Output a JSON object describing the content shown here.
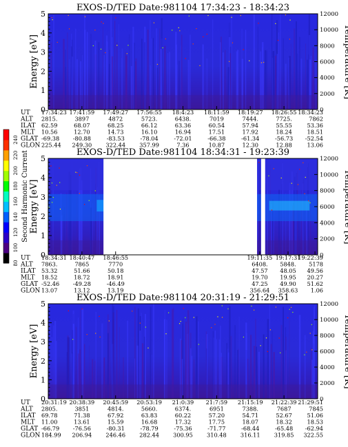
{
  "colorbar": {
    "label": "Second Harmonic Current",
    "ticks": [
      "240",
      "220",
      "200",
      "180",
      "160",
      "140",
      "120",
      "100",
      "80"
    ],
    "colors": [
      "#000000",
      "#4b0082",
      "#2a00c8",
      "#0000ff",
      "#0060ff",
      "#00c0ff",
      "#00ffc0",
      "#00ff00",
      "#a0ff00",
      "#ffff00",
      "#ffa000",
      "#ff3000",
      "#ff0000"
    ]
  },
  "chart_data": [
    {
      "type": "heatmap",
      "title": "EXOS-D/TED   Date:981104   17:34:23 - 18:34:23",
      "ylabel": "Energy [eV]",
      "y2label": "Temperature [K]",
      "ylim": [
        0,
        5
      ],
      "y2lim": [
        0,
        12000
      ],
      "yticks": [
        "0",
        "1",
        "2",
        "3",
        "4",
        "5"
      ],
      "y2ticks": [
        "0",
        "2000",
        "4000",
        "6000",
        "8000",
        "10000",
        "12000"
      ],
      "gaps": [],
      "table": {
        "UT": [
          "17:34:23",
          "17:41:59",
          "17:49:27",
          "17:56:55",
          "18:4:23",
          "18:11:59",
          "18:19:27",
          "18:26:55",
          "18:34:23"
        ],
        "ALT": [
          "2815.",
          "3897",
          "4872",
          "5723.",
          "6438.",
          "7019",
          "7444.",
          "7725.",
          "7862"
        ],
        "ILAT": [
          "62.59",
          "68.07",
          "68.25",
          "66.12",
          "63.36",
          "60.54",
          "57.94",
          "55.55",
          "53.36"
        ],
        "MLT": [
          "10.56",
          "12.70",
          "14.73",
          "16.10",
          "16.94",
          "17.51",
          "17.92",
          "18.24",
          "18.51"
        ],
        "GLAT": [
          "-69.38",
          "-80.88",
          "-83.53",
          "-78.04",
          "-72.01",
          "-66.38",
          "-61.34",
          "-56.73",
          "-52.54"
        ],
        "GLON": [
          "225.44",
          "249.30",
          "322.44",
          "357.99",
          "7.36",
          "10.87",
          "12.30",
          "12.88",
          "13.06"
        ]
      }
    },
    {
      "type": "heatmap",
      "title": "EXOS-D/TED   Date:981104   18:34:31 - 19:23:39",
      "ylabel": "Energy [eV]",
      "y2label": "Temperature [K]",
      "ylim": [
        0,
        5
      ],
      "y2lim": [
        0,
        12000
      ],
      "yticks": [
        "0",
        "1",
        "2",
        "3",
        "4",
        "5"
      ],
      "y2ticks": [
        "0",
        "2000",
        "4000",
        "6000",
        "8000",
        "10000",
        "12000"
      ],
      "gaps": [
        [
          0.205,
          0.775
        ],
        [
          0.79,
          0.805
        ]
      ],
      "table": {
        "UT": [
          "18:34:31",
          "18:40:47",
          "18:46:55",
          "",
          "",
          "19:11:35",
          "19:17:31",
          "19:22:39"
        ],
        "ALT": [
          "7863.",
          "7865",
          "7770",
          "",
          "",
          "6408.",
          "5848.",
          "5178"
        ],
        "ILAT": [
          "53.32",
          "51.66",
          "50.18",
          "",
          "",
          "47.57",
          "48.05",
          "49.56"
        ],
        "MLT": [
          "18.52",
          "18.72",
          "18.91",
          "",
          "",
          "19.70",
          "19.95",
          "20.27"
        ],
        "GLAT": [
          "-52.46",
          "-49.28",
          "-46.49",
          "",
          "",
          "47.25",
          "49.90",
          "51.62"
        ],
        "GLON": [
          "13.07",
          "13.12",
          "13.19",
          "",
          "",
          "356.64",
          "358.63",
          "1.06"
        ]
      }
    },
    {
      "type": "heatmap",
      "title": "EXOS-D/TED   Date:981104   20:31:19 - 21:29:51",
      "ylabel": "Energy [eV]",
      "y2label": "Temperature [K]",
      "ylim": [
        0,
        5
      ],
      "y2lim": [
        0,
        12000
      ],
      "yticks": [
        "0",
        "1",
        "2",
        "3",
        "4",
        "5"
      ],
      "y2ticks": [
        "0",
        "2000",
        "4000",
        "6000",
        "8000",
        "10000",
        "12000"
      ],
      "gaps": [],
      "table": {
        "UT": [
          "20:31:19",
          "20:38:39",
          "20:45:59",
          "20:53:19",
          "21:0:39",
          "21:7:59",
          "21:15:19",
          "21:22:39",
          "21:29:51"
        ],
        "ALT": [
          "2805.",
          "3851",
          "4814.",
          "5660.",
          "6374.",
          "6951",
          "7388.",
          "7687",
          "7845"
        ],
        "ILAT": [
          "69.78",
          "71.38",
          "67.92",
          "63.83",
          "60.22",
          "57.20",
          "54.71",
          "52.67",
          "51.06"
        ],
        "MLT": [
          "11.00",
          "13.61",
          "15.59",
          "16.68",
          "17.32",
          "17.75",
          "18.07",
          "18.32",
          "18.53"
        ],
        "GLAT": [
          "-66.79",
          "-76.56",
          "-80.31",
          "-78.79",
          "-75.36",
          "-71.77",
          "-68.44",
          "-65.48",
          "-62.94"
        ],
        "GLON": [
          "184.99",
          "206.94",
          "246.46",
          "282.44",
          "300.95",
          "310.48",
          "316.11",
          "319.85",
          "322.55"
        ]
      }
    }
  ],
  "row_labels": [
    "UT",
    "ALT",
    "ILAT",
    "MLT",
    "GLAT",
    "GLON"
  ]
}
